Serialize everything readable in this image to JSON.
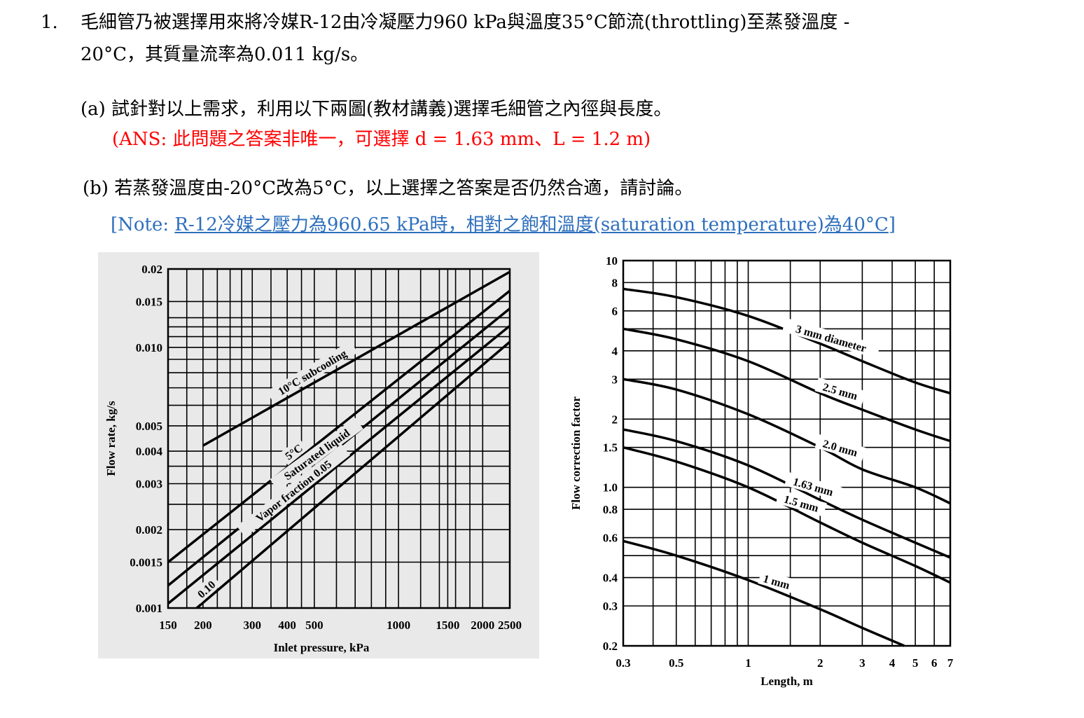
{
  "question": {
    "number": "1.",
    "line1": "毛細管乃被選擇用來將冷媒R-12由冷凝壓力960 kPa與溫度35°C節流(throttling)至蒸發溫度 -",
    "line2": "20°C，其質量流率為0.011 kg/s。",
    "part_a": "(a) 試針對以上需求，利用以下兩圖(教材講義)選擇毛細管之內徑與長度。",
    "part_a_answer": "(ANS: 此問題之答案非唯一，可選擇 d = 1.63 mm、L = 1.2 m)",
    "part_b": "(b) 若蒸發溫度由-20°C改為5°C，以上選擇之答案是否仍然合適，請討論。",
    "part_b_note_prefix": "[Note: ",
    "part_b_note_link": "R-12冷媒之壓力為960.65 kPa時，相對之飽和溫度(saturation temperature)為40°C",
    "part_b_note_suffix": "]"
  },
  "colors": {
    "answer": "#ff0000",
    "note": "#2e6fbd",
    "chart_bg": "#e9e9e9"
  },
  "chart_data": [
    {
      "type": "line",
      "xlabel": "Inlet pressure, kPa",
      "ylabel": "Flow rate, kg/s",
      "x_scale": "log",
      "y_scale": "log",
      "xlim": [
        150,
        2500
      ],
      "ylim": [
        0.001,
        0.02
      ],
      "x_ticks": [
        "150",
        "200",
        "300",
        "400",
        "500",
        "1000",
        "1500",
        "2000",
        "2500"
      ],
      "x_tick_values": [
        150,
        200,
        300,
        400,
        500,
        1000,
        1500,
        2000,
        2500
      ],
      "y_ticks": [
        "0.02",
        "0.015",
        "0.010",
        "0.005",
        "0.004",
        "0.003",
        "0.002",
        "0.0015",
        "0.001"
      ],
      "y_tick_values": [
        0.02,
        0.015,
        0.01,
        0.005,
        0.004,
        0.003,
        0.002,
        0.0015,
        0.001
      ],
      "series": [
        {
          "name": "10°C subcooling",
          "x": [
            200,
            2500
          ],
          "y": [
            0.0042,
            0.0195
          ]
        },
        {
          "name": "5°C",
          "x": [
            150,
            2500
          ],
          "y": [
            0.0015,
            0.0165
          ]
        },
        {
          "name": "Saturated liquid",
          "x": [
            150,
            2500
          ],
          "y": [
            0.00122,
            0.0141
          ]
        },
        {
          "name": "Vapor fraction 0.05",
          "x": [
            150,
            2500
          ],
          "y": [
            0.00104,
            0.0121
          ]
        },
        {
          "name": "0.10",
          "x": [
            190,
            2500
          ],
          "y": [
            0.001,
            0.0105
          ]
        }
      ]
    },
    {
      "type": "line",
      "xlabel": "Length, m",
      "ylabel": "Flow correction factor",
      "x_scale": "log",
      "y_scale": "log",
      "xlim": [
        0.3,
        7
      ],
      "ylim": [
        0.2,
        10
      ],
      "x_ticks": [
        "0.3",
        "0.5",
        "1",
        "2",
        "3",
        "4",
        "5",
        "6",
        "7"
      ],
      "x_tick_values": [
        0.3,
        0.5,
        1,
        2,
        3,
        4,
        5,
        6,
        7
      ],
      "y_ticks": [
        "10",
        "8",
        "6",
        "4",
        "3",
        "2",
        "1.5",
        "1.0",
        "0.8",
        "0.6",
        "0.4",
        "0.3",
        "0.2"
      ],
      "y_tick_values": [
        10,
        8,
        6,
        4,
        3,
        2,
        1.5,
        1.0,
        0.8,
        0.6,
        0.4,
        0.3,
        0.2
      ],
      "series": [
        {
          "name": "3 mm diameter",
          "x": [
            0.3,
            0.5,
            1,
            2,
            3,
            5,
            7
          ],
          "y": [
            7.5,
            6.9,
            5.7,
            4.3,
            3.6,
            2.9,
            2.6
          ]
        },
        {
          "name": "2.5 mm",
          "x": [
            0.3,
            0.5,
            1,
            2,
            3,
            5,
            7
          ],
          "y": [
            5.0,
            4.5,
            3.6,
            2.6,
            2.2,
            1.8,
            1.6
          ]
        },
        {
          "name": "2.0 mm",
          "x": [
            0.3,
            0.5,
            1,
            2,
            3,
            5,
            7
          ],
          "y": [
            3.0,
            2.7,
            2.1,
            1.5,
            1.2,
            1.0,
            0.85
          ]
        },
        {
          "name": "1.63 mm",
          "x": [
            0.3,
            0.5,
            1,
            2,
            3,
            5,
            7
          ],
          "y": [
            1.8,
            1.6,
            1.25,
            0.88,
            0.72,
            0.57,
            0.49
          ]
        },
        {
          "name": "1.5 mm",
          "x": [
            0.3,
            0.5,
            1,
            2,
            3,
            5,
            7
          ],
          "y": [
            1.5,
            1.3,
            1.0,
            0.7,
            0.57,
            0.45,
            0.38
          ]
        },
        {
          "name": "1 mm",
          "x": [
            0.3,
            0.5,
            1,
            2,
            3,
            4.5
          ],
          "y": [
            0.58,
            0.5,
            0.39,
            0.29,
            0.24,
            0.2
          ]
        }
      ]
    }
  ]
}
